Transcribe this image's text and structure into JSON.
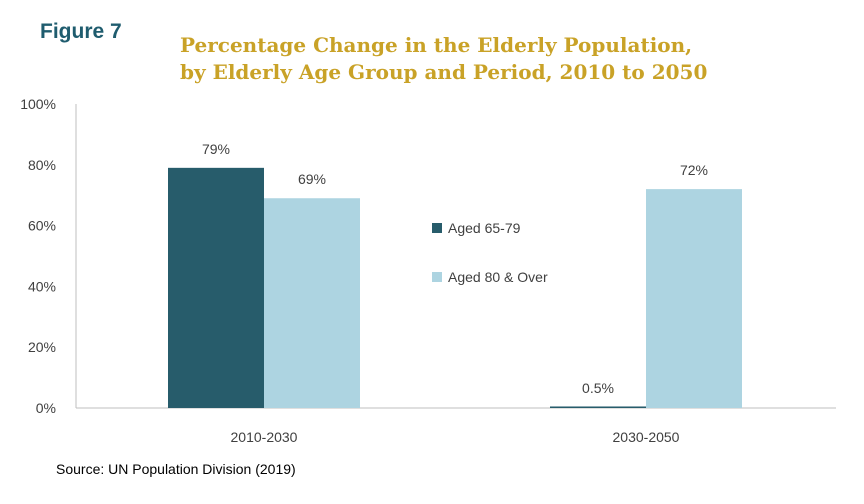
{
  "figure_label": "Figure 7",
  "colors": {
    "figure_label": "#1f5c6e",
    "title": "#c9a227",
    "series": [
      "#275c6b",
      "#add4e1"
    ],
    "axis_text": "#404040",
    "axis_line": "#bfbfbf"
  },
  "source": "Source: UN Population Division (2019)",
  "chart_data": {
    "type": "bar",
    "title": {
      "line1": "Percentage Change in the Elderly Population,",
      "line2": "by Elderly Age Group and Period, 2010 to 2050"
    },
    "xlabel": "",
    "ylabel": "",
    "categories": [
      "2010-2030",
      "2030-2050"
    ],
    "ylim": [
      0,
      100
    ],
    "yticks": [
      "0%",
      "20%",
      "40%",
      "60%",
      "80%",
      "100%"
    ],
    "grid": false,
    "legend_position": "center",
    "series": [
      {
        "name": "Aged 65-79",
        "values": [
          79,
          0.5
        ],
        "labels": [
          "79%",
          "0.5%"
        ]
      },
      {
        "name": "Aged 80 & Over",
        "values": [
          69,
          72
        ],
        "labels": [
          "69%",
          "72%"
        ]
      }
    ]
  }
}
